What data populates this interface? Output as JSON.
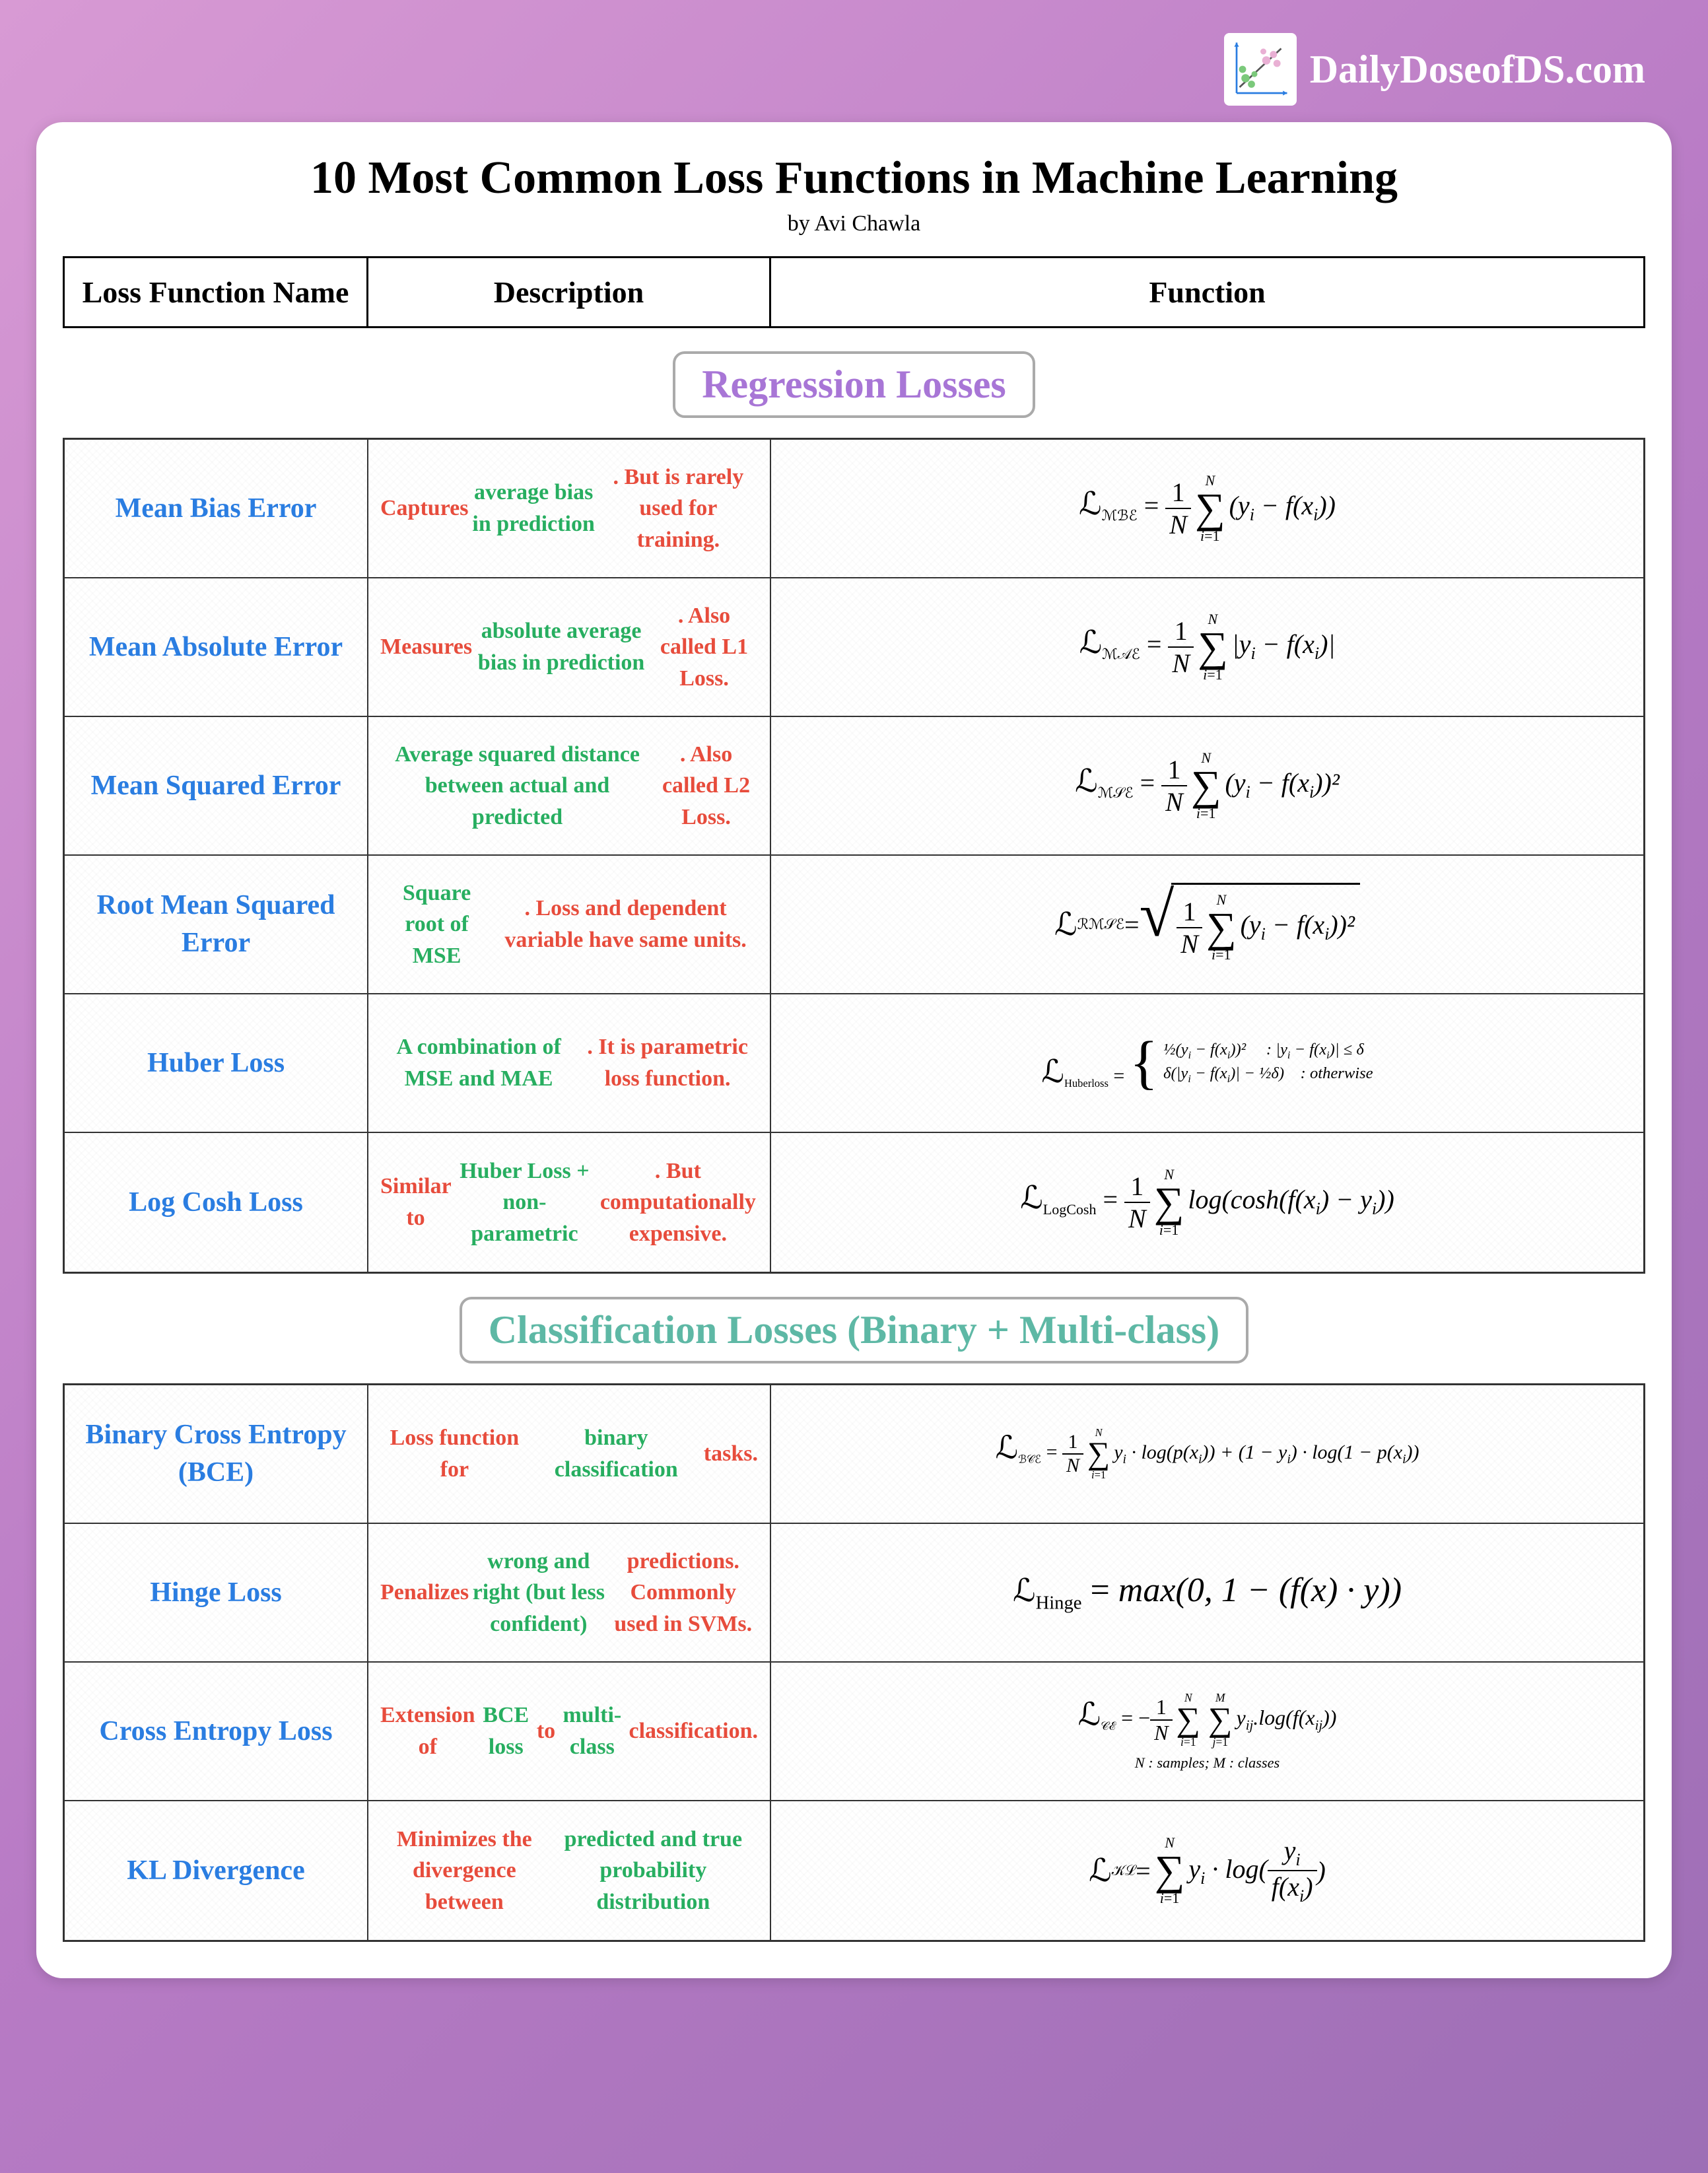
{
  "site": {
    "name": "DailyDoseofDS.com"
  },
  "title": "10 Most Common Loss Functions in Machine Learning",
  "byline": "by Avi Chawla",
  "columns": [
    "Loss Function Name",
    "Description",
    "Function"
  ],
  "sections": [
    {
      "badge": "Regression Losses",
      "badge_color": "#a876d6"
    },
    {
      "badge": "Classification Losses (Binary + Multi-class)",
      "badge_color": "#5eb8a5"
    }
  ],
  "regression": [
    {
      "name": "Mean Bias Error",
      "desc_parts": [
        [
          "r",
          "Captures "
        ],
        [
          "g",
          "average bias in prediction"
        ],
        [
          "r",
          ". But is rarely used for training."
        ]
      ],
      "fn_sub": "ℳℬℰ",
      "fn_expr": "(y_i − f(x_i))",
      "fn_type": "avg"
    },
    {
      "name": "Mean Absolute Error",
      "desc_parts": [
        [
          "r",
          "Measures "
        ],
        [
          "g",
          "absolute average bias in prediction"
        ],
        [
          "r",
          ". Also called L1 Loss."
        ]
      ],
      "fn_sub": "ℳ𝒜ℰ",
      "fn_expr": "|y_i − f(x_i)|",
      "fn_type": "avg"
    },
    {
      "name": "Mean Squared Error",
      "desc_parts": [
        [
          "g",
          "Average squared distance between actual and predicted"
        ],
        [
          "r",
          ". Also called L2 Loss."
        ]
      ],
      "fn_sub": "ℳ𝒮ℰ",
      "fn_expr": "(y_i − f(x_i))²",
      "fn_type": "avg"
    },
    {
      "name": "Root Mean Squared Error",
      "desc_parts": [
        [
          "g",
          "Square root of MSE"
        ],
        [
          "r",
          ". Loss and dependent variable have same units."
        ]
      ],
      "fn_sub": "ℛℳ𝒮ℰ",
      "fn_expr": "(y_i − f(x_i))²",
      "fn_type": "sqrt_avg"
    },
    {
      "name": "Huber Loss",
      "desc_parts": [
        [
          "g",
          "A combination of MSE and MAE"
        ],
        [
          "r",
          ". It is parametric loss function."
        ]
      ],
      "fn_sub": "Huberloss",
      "fn_type": "huber",
      "case1": "½(y_i − f(x_i))²",
      "cond1": ": |y_i − f(x_i)| ≤ δ",
      "case2": "δ(|y_i − f(x_i)| − ½δ)",
      "cond2": ": otherwise"
    },
    {
      "name": "Log Cosh Loss",
      "desc_parts": [
        [
          "r",
          "Similar to "
        ],
        [
          "g",
          "Huber Loss + non-parametric"
        ],
        [
          "r",
          ". But computationally expensive."
        ]
      ],
      "fn_sub": "LogCosh",
      "fn_expr": "log(cosh(f(x_i) − y_i))",
      "fn_type": "avg"
    }
  ],
  "classification": [
    {
      "name": "Binary Cross Entropy (BCE)",
      "desc_parts": [
        [
          "r",
          "Loss function for "
        ],
        [
          "g",
          "binary classification"
        ],
        [
          "r",
          " tasks."
        ]
      ],
      "fn_sub": "ℬ𝒞ℰ",
      "fn_expr": "y_i · log(p(x_i)) + (1 − y_i) · log(1 − p(x_i))",
      "fn_type": "avg",
      "fn_small": true
    },
    {
      "name": "Hinge Loss",
      "desc_parts": [
        [
          "r",
          "Penalizes "
        ],
        [
          "g",
          "wrong and right (but less confident)"
        ],
        [
          "r",
          " predictions. Commonly used in SVMs."
        ]
      ],
      "fn_sub": "Hinge",
      "fn_type": "plain",
      "fn_expr": "max(0, 1 − (f(x) · y))",
      "fn_large": true
    },
    {
      "name": "Cross Entropy Loss",
      "desc_parts": [
        [
          "r",
          "Extension of "
        ],
        [
          "g",
          "BCE loss"
        ],
        [
          "r",
          " to "
        ],
        [
          "g",
          "multi-class"
        ],
        [
          "r",
          " classification."
        ]
      ],
      "fn_sub": "𝒞ℰ",
      "fn_type": "double_sum",
      "fn_expr": "y_ij.log(f(x_ij))",
      "note": "N : samples; M : classes"
    },
    {
      "name": "KL Divergence",
      "desc_parts": [
        [
          "r",
          "Minimizes the divergence between "
        ],
        [
          "g",
          "predicted and true probability distribution"
        ]
      ],
      "fn_sub": "𝒦ℒ",
      "fn_type": "sum_frac",
      "fn_expr_pre": "y_i · log(",
      "frac_num": "y_i",
      "frac_den": "f(x_i)",
      "fn_expr_post": ")"
    }
  ],
  "styling": {
    "bg_gradient": [
      "#d89ad4",
      "#b87bc5",
      "#9d6eb5"
    ],
    "card_bg": "#ffffff",
    "card_radius": 40,
    "name_color": "#2a7de1",
    "red": "#e74c3c",
    "green": "#27ae60",
    "border_color": "#333333",
    "title_fontsize": 70,
    "byline_fontsize": 34,
    "colhdr_fontsize": 46,
    "badge_fontsize": 60,
    "name_fontsize": 42,
    "desc_fontsize": 34,
    "fn_fontsize": 40,
    "grid_cols": [
      460,
      610,
      "1fr"
    ],
    "row_min_height": 210
  }
}
